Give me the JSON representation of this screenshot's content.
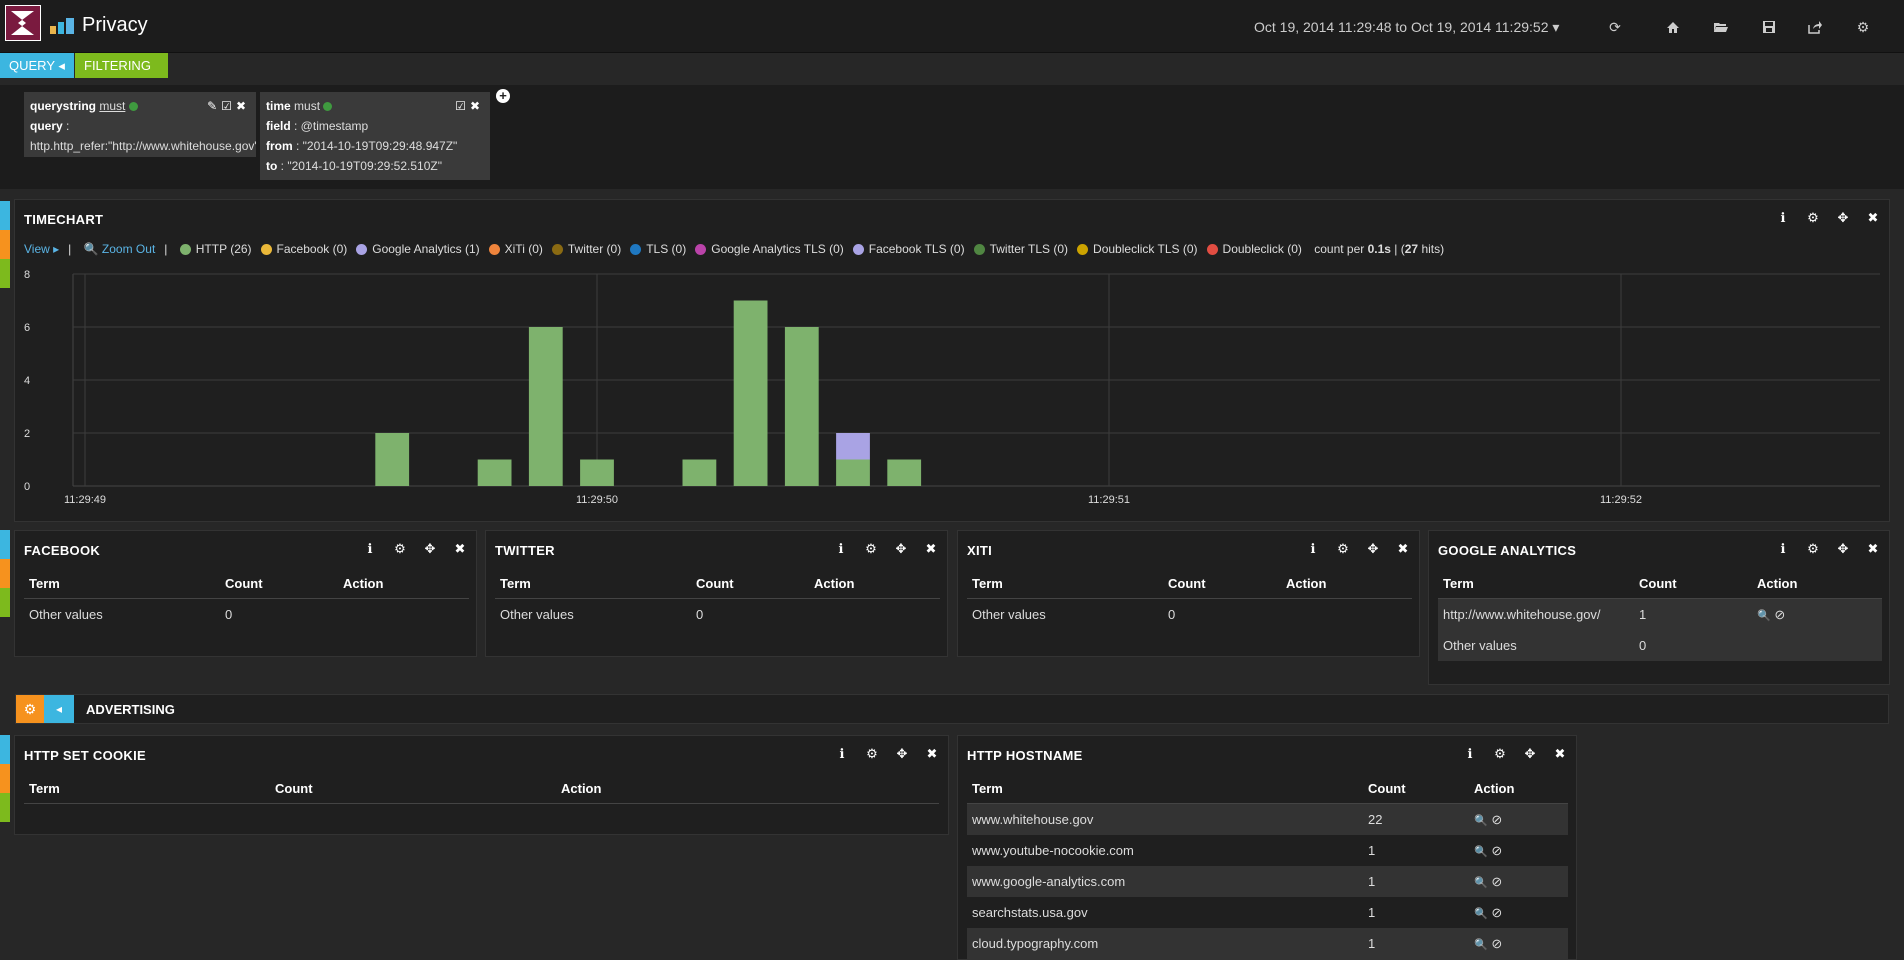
{
  "header": {
    "dashboard_title": "Privacy",
    "time_range": "Oct 19, 2014 11:29:48 to Oct 19, 2014 11:29:52",
    "icons": [
      "refresh-icon",
      "home-icon",
      "folder-open-icon",
      "save-icon",
      "share-icon",
      "gear-icon"
    ]
  },
  "tabs": {
    "query": "QUERY",
    "filtering": "FILTERING"
  },
  "filters": [
    {
      "type": "querystring",
      "mode": "must",
      "lines": [
        {
          "k": "query",
          "v": " :"
        },
        {
          "k": "",
          "v": "http.http_refer:\"http://www.whitehouse.gov\""
        }
      ]
    },
    {
      "type": "time",
      "mode": "must",
      "lines": [
        {
          "k": "field",
          "v": " : @timestamp"
        },
        {
          "k": "from",
          "v": " : \"2014-10-19T09:29:48.947Z\""
        },
        {
          "k": "to",
          "v": " : \"2014-10-19T09:29:52.510Z\""
        }
      ]
    }
  ],
  "timechart": {
    "title": "TIMECHART",
    "view_label": "View",
    "zoom_label": "Zoom Out",
    "legend": [
      {
        "label": "HTTP (26)",
        "color": "#7eb26d"
      },
      {
        "label": "Facebook (0)",
        "color": "#eab839"
      },
      {
        "label": "Google Analytics (1)",
        "color": "#a9a3e4"
      },
      {
        "label": "XiTi (0)",
        "color": "#ef843c"
      },
      {
        "label": "Twitter (0)",
        "color": "#8a6a12"
      },
      {
        "label": "TLS (0)",
        "color": "#1f78c1"
      },
      {
        "label": "Google Analytics TLS (0)",
        "color": "#ba43a9"
      },
      {
        "label": "Facebook TLS (0)",
        "color": "#a9a3e4"
      },
      {
        "label": "Twitter TLS (0)",
        "color": "#508642"
      },
      {
        "label": "Doubleclick TLS (0)",
        "color": "#cca300"
      },
      {
        "label": "Doubleclick (0)",
        "color": "#e24d42"
      }
    ],
    "count_per_prefix": "count per ",
    "count_per_interval": "0.1s",
    "hits_prefix": " | (",
    "hits_count": "27",
    "hits_suffix": " hits)"
  },
  "chart_data": {
    "type": "bar",
    "x_ticks": [
      "11:29:49",
      "11:29:50",
      "11:29:51",
      "11:29:52"
    ],
    "y_ticks": [
      0,
      2,
      4,
      6,
      8
    ],
    "ylim": [
      0,
      8
    ],
    "interval_s": 0.1,
    "series": [
      {
        "name": "HTTP",
        "color": "#7eb26d",
        "points": [
          [
            "11:29:49.6",
            2
          ],
          [
            "11:29:49.8",
            1
          ],
          [
            "11:29:49.9",
            6
          ],
          [
            "11:29:50.0",
            1
          ],
          [
            "11:29:50.2",
            1
          ],
          [
            "11:29:50.3",
            7
          ],
          [
            "11:29:50.4",
            6
          ],
          [
            "11:29:50.5",
            1
          ],
          [
            "11:29:50.6",
            1
          ]
        ]
      },
      {
        "name": "Google Analytics",
        "color": "#a9a3e4",
        "points": [
          [
            "11:29:50.5",
            1
          ]
        ]
      }
    ]
  },
  "panels": {
    "facebook": {
      "title": "FACEBOOK",
      "headers": [
        "Term",
        "Count",
        "Action"
      ],
      "rows": [
        {
          "term": "Other values",
          "count": "0",
          "actions": false
        }
      ]
    },
    "twitter": {
      "title": "TWITTER",
      "headers": [
        "Term",
        "Count",
        "Action"
      ],
      "rows": [
        {
          "term": "Other values",
          "count": "0",
          "actions": false
        }
      ]
    },
    "xiti": {
      "title": "XITI",
      "headers": [
        "Term",
        "Count",
        "Action"
      ],
      "rows": [
        {
          "term": "Other values",
          "count": "0",
          "actions": false
        }
      ]
    },
    "google_analytics": {
      "title": "GOOGLE ANALYTICS",
      "headers": [
        "Term",
        "Count",
        "Action"
      ],
      "rows": [
        {
          "term": "http://www.whitehouse.gov/",
          "count": "1",
          "actions": true
        },
        {
          "term": "Other values",
          "count": "0",
          "actions": false
        }
      ]
    },
    "http_set_cookie": {
      "title": "HTTP SET COOKIE",
      "headers": [
        "Term",
        "Count",
        "Action"
      ],
      "rows": []
    },
    "http_hostname": {
      "title": "HTTP HOSTNAME",
      "headers": [
        "Term",
        "Count",
        "Action"
      ],
      "rows": [
        {
          "term": "www.whitehouse.gov",
          "count": "22",
          "actions": true
        },
        {
          "term": "www.youtube-nocookie.com",
          "count": "1",
          "actions": true
        },
        {
          "term": "www.google-analytics.com",
          "count": "1",
          "actions": true
        },
        {
          "term": "searchstats.usa.gov",
          "count": "1",
          "actions": true
        },
        {
          "term": "cloud.typography.com",
          "count": "1",
          "actions": true
        }
      ]
    }
  },
  "advertising_row": {
    "title": "ADVERTISING"
  },
  "colors": {
    "accent_blue": "#3cb6e0",
    "accent_green": "#7dba1d",
    "accent_orange": "#f6921e",
    "link": "#5ab4e5"
  }
}
